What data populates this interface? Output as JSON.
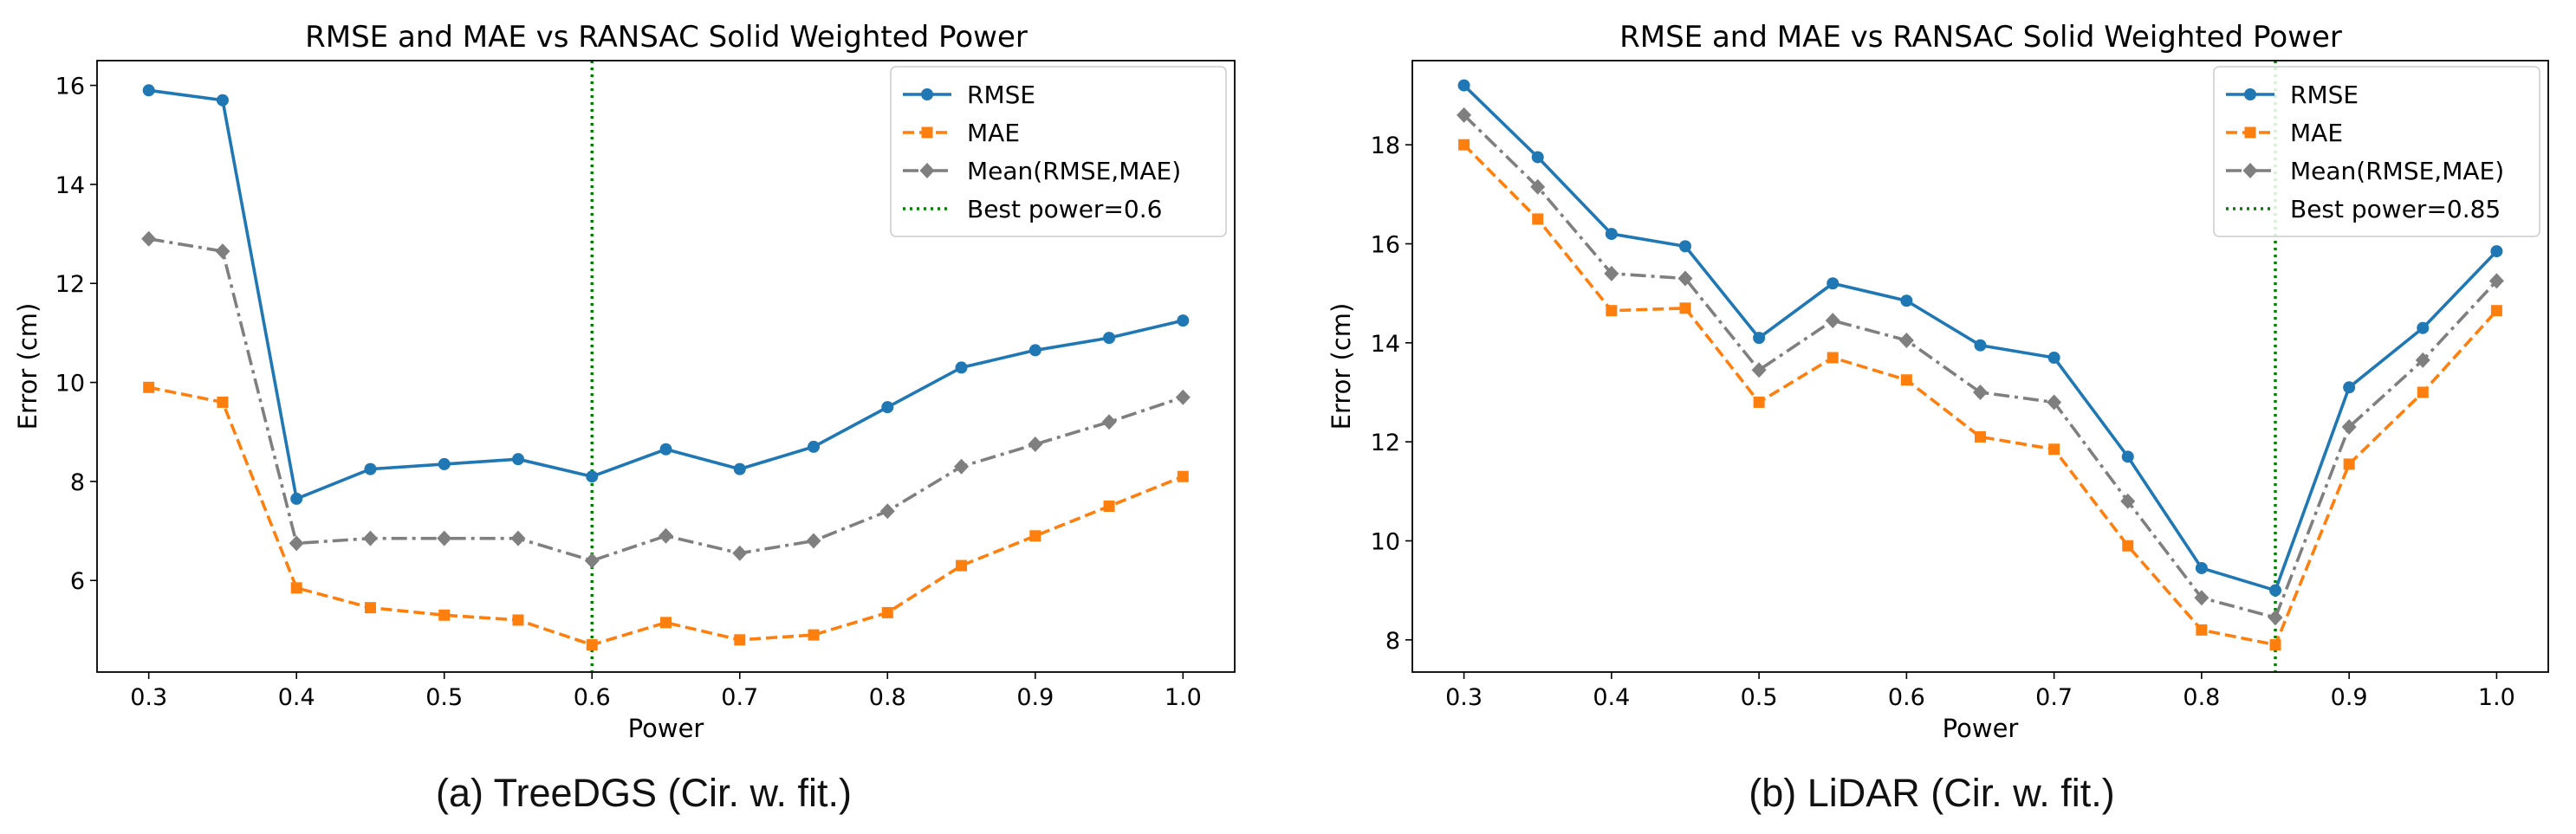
{
  "chart_data": [
    {
      "type": "line",
      "title": "RMSE and MAE vs RANSAC Solid Weighted Power",
      "xlabel": "Power",
      "ylabel": "Error (cm)",
      "caption": "(a) TreeDGS (Cir. w. fit.)",
      "x": [
        0.3,
        0.35,
        0.4,
        0.45,
        0.5,
        0.55,
        0.6,
        0.65,
        0.7,
        0.75,
        0.8,
        0.85,
        0.9,
        0.95,
        1.0
      ],
      "xlim": [
        0.265,
        1.035
      ],
      "ylim": [
        4.15,
        16.5
      ],
      "xticks": [
        0.3,
        0.4,
        0.5,
        0.6,
        0.7,
        0.8,
        0.9,
        1.0
      ],
      "xtick_labels": [
        "0.3",
        "0.4",
        "0.5",
        "0.6",
        "0.7",
        "0.8",
        "0.9",
        "1.0"
      ],
      "yticks": [
        6,
        8,
        10,
        12,
        14,
        16
      ],
      "ytick_labels": [
        "6",
        "8",
        "10",
        "12",
        "14",
        "16"
      ],
      "grid": false,
      "legend_position": "top-right",
      "series": [
        {
          "name": "RMSE",
          "color": "#1f77b4",
          "marker": "circle",
          "dash": "solid",
          "values": [
            15.9,
            15.7,
            7.65,
            8.25,
            8.35,
            8.45,
            8.1,
            8.65,
            8.25,
            8.7,
            9.5,
            10.3,
            10.65,
            10.9,
            11.25
          ]
        },
        {
          "name": "MAE",
          "color": "#ff7f0e",
          "marker": "square",
          "dash": "dashed",
          "values": [
            9.9,
            9.6,
            5.85,
            5.45,
            5.3,
            5.2,
            4.7,
            5.15,
            4.8,
            4.9,
            5.35,
            6.3,
            6.9,
            7.5,
            8.1
          ]
        },
        {
          "name": "Mean(RMSE,MAE)",
          "color": "#7f7f7f",
          "marker": "diamond",
          "dash": "dashdot",
          "values": [
            12.9,
            12.65,
            6.75,
            6.85,
            6.85,
            6.85,
            6.4,
            6.9,
            6.55,
            6.8,
            7.4,
            8.3,
            8.75,
            9.2,
            9.7
          ]
        }
      ],
      "vline": {
        "name": "Best power=0.6",
        "x": 0.6,
        "color": "#008000",
        "dash": "dotted"
      }
    },
    {
      "type": "line",
      "title": "RMSE and MAE vs RANSAC Solid Weighted Power",
      "xlabel": "Power",
      "ylabel": "Error (cm)",
      "caption": "(b) LiDAR (Cir. w. fit.)",
      "x": [
        0.3,
        0.35,
        0.4,
        0.45,
        0.5,
        0.55,
        0.6,
        0.65,
        0.7,
        0.75,
        0.8,
        0.85,
        0.9,
        0.95,
        1.0
      ],
      "xlim": [
        0.265,
        1.035
      ],
      "ylim": [
        7.35,
        19.7
      ],
      "xticks": [
        0.3,
        0.4,
        0.5,
        0.6,
        0.7,
        0.8,
        0.9,
        1.0
      ],
      "xtick_labels": [
        "0.3",
        "0.4",
        "0.5",
        "0.6",
        "0.7",
        "0.8",
        "0.9",
        "1.0"
      ],
      "yticks": [
        8,
        10,
        12,
        14,
        16,
        18
      ],
      "ytick_labels": [
        "8",
        "10",
        "12",
        "14",
        "16",
        "18"
      ],
      "grid": false,
      "legend_position": "top-right",
      "series": [
        {
          "name": "RMSE",
          "color": "#1f77b4",
          "marker": "circle",
          "dash": "solid",
          "values": [
            19.2,
            17.75,
            16.2,
            15.95,
            14.1,
            15.2,
            14.85,
            13.95,
            13.7,
            11.7,
            9.45,
            9.0,
            13.1,
            14.3,
            15.85
          ]
        },
        {
          "name": "MAE",
          "color": "#ff7f0e",
          "marker": "square",
          "dash": "dashed",
          "values": [
            18.0,
            16.5,
            14.65,
            14.7,
            12.8,
            13.7,
            13.25,
            12.1,
            11.85,
            9.9,
            8.2,
            7.9,
            11.55,
            13.0,
            14.65
          ]
        },
        {
          "name": "Mean(RMSE,MAE)",
          "color": "#7f7f7f",
          "marker": "diamond",
          "dash": "dashdot",
          "values": [
            18.6,
            17.15,
            15.4,
            15.3,
            13.45,
            14.45,
            14.05,
            13.0,
            12.8,
            10.8,
            8.85,
            8.45,
            12.3,
            13.65,
            15.25
          ]
        }
      ],
      "vline": {
        "name": "Best power=0.85",
        "x": 0.85,
        "color": "#008000",
        "dash": "dotted"
      }
    }
  ]
}
